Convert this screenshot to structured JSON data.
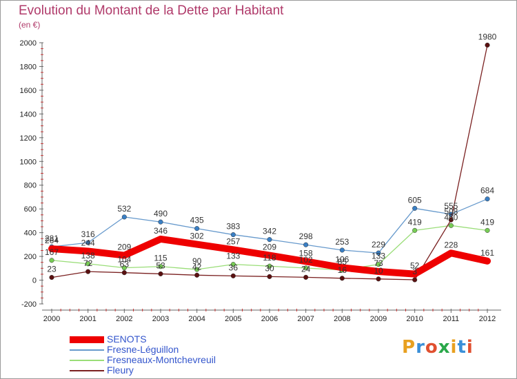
{
  "header": {
    "title": "Evolution du Montant de la Dette par Habitant",
    "unit": "(en €)"
  },
  "logo": {
    "text": "Proxiti",
    "colors": [
      "#e8a020",
      "#3a8fd8",
      "#e05030",
      "#2aa84a",
      "#e8a020",
      "#3a8fd8",
      "#e05030"
    ]
  },
  "chart_data": {
    "type": "line",
    "xlabel": "",
    "ylabel": "",
    "x": [
      "2000",
      "2001",
      "2002",
      "2003",
      "2004",
      "2005",
      "2006",
      "2007",
      "2008",
      "2009",
      "2010",
      "2011",
      "2012"
    ],
    "ylim": [
      -200,
      2000
    ],
    "yticks": [
      -200,
      0,
      200,
      400,
      600,
      800,
      1000,
      1200,
      1400,
      1600,
      1800,
      2000
    ],
    "grid": false,
    "series": [
      {
        "name": "SENOTS",
        "color": "#ee0000",
        "values": [
          264,
          244,
          209,
          346,
          302,
          257,
          209,
          158,
          106,
          73,
          52,
          228,
          161
        ]
      },
      {
        "name": "Fresne-Léguillon",
        "color": "#6699cc",
        "values": [
          281,
          316,
          532,
          490,
          435,
          383,
          342,
          298,
          253,
          229,
          605,
          555,
          684
        ]
      },
      {
        "name": "Fresneaux-Montchevreuil",
        "color": "#99dd77",
        "values": [
          167,
          138,
          104,
          115,
          90,
          133,
          118,
          102,
          85,
          133,
          419,
          460,
          419
        ]
      },
      {
        "name": "Fleury",
        "color": "#7a2020",
        "values": [
          23,
          72,
          63,
          53,
          42,
          36,
          30,
          24,
          16,
          10,
          3,
          508,
          1980
        ]
      }
    ]
  }
}
